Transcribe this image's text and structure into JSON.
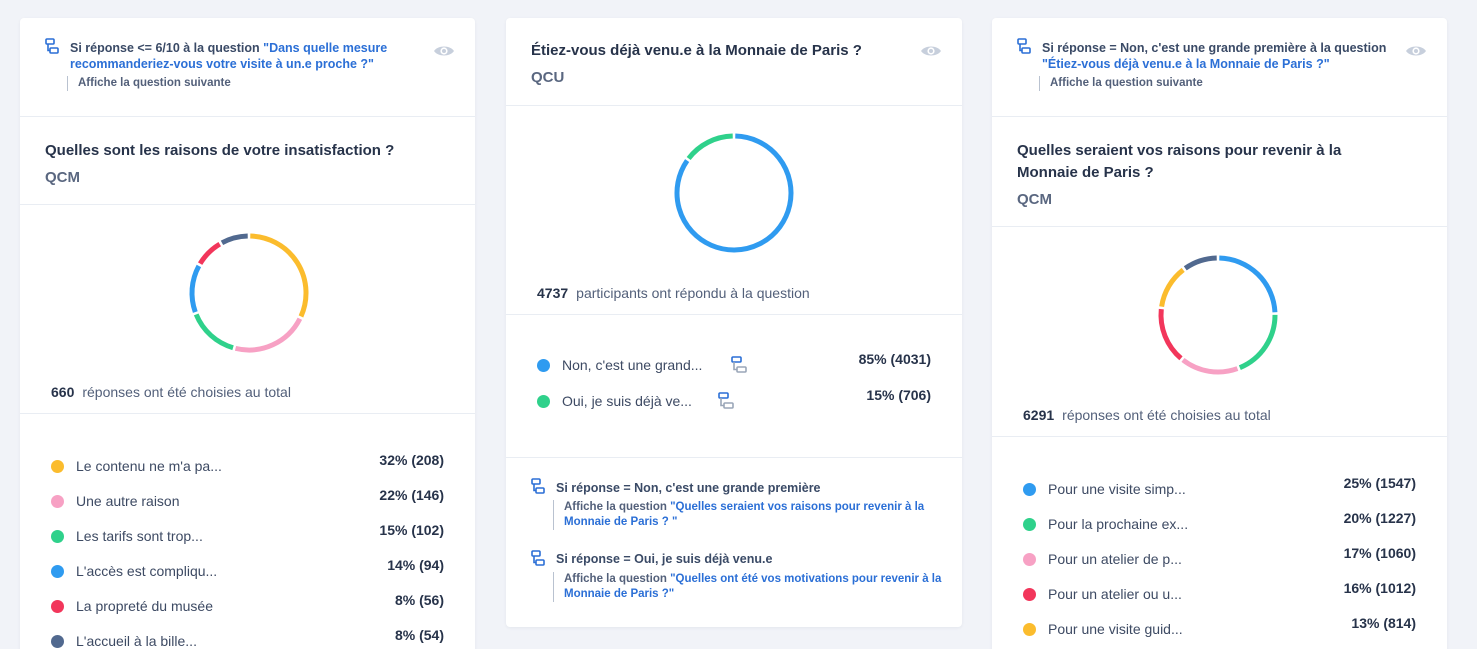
{
  "colors": {
    "yellow": "#fbbc2d",
    "pink": "#f7a1c4",
    "green": "#2fd18b",
    "blue": "#2f9bf0",
    "red": "#f2365b",
    "slate": "#51698f"
  },
  "card1": {
    "condition": {
      "prefix": "Si réponse <= 6/10 à la question ",
      "link": "\"Dans quelle mesure recommanderiez-vous votre visite à un.e proche ?\"",
      "action": "Affiche la question suivante"
    },
    "title": "Quelles sont les raisons de votre insatisfaction ?",
    "type": "QCM",
    "total_count": "660",
    "total_label": "réponses ont été choisies au total",
    "options": [
      {
        "label": "Le contenu ne m'a pa...",
        "pct": "32% (208)",
        "color": "yellow",
        "share": 0.32
      },
      {
        "label": "Une autre raison",
        "pct": "22% (146)",
        "color": "pink",
        "share": 0.22
      },
      {
        "label": "Les tarifs sont trop...",
        "pct": "15% (102)",
        "color": "green",
        "share": 0.15
      },
      {
        "label": "L'accès est compliqu...",
        "pct": "14% (94)",
        "color": "blue",
        "share": 0.14
      },
      {
        "label": "La propreté du musée",
        "pct": "8% (56)",
        "color": "red",
        "share": 0.085
      },
      {
        "label": "L'accueil à la bille...",
        "pct": "8% (54)",
        "color": "slate",
        "share": 0.082
      }
    ]
  },
  "card2": {
    "title": "Étiez-vous déjà venu.e à la Monnaie de Paris ?",
    "type": "QCU",
    "total_count": "4737",
    "total_label": "participants ont répondu à la question",
    "options": [
      {
        "label": "Non, c'est une grand...",
        "pct": "85% (4031)",
        "color": "blue",
        "share": 0.85
      },
      {
        "label": "Oui, je suis déjà ve...",
        "pct": "15% (706)",
        "color": "green",
        "share": 0.15
      }
    ],
    "rules": [
      {
        "cond": "Si réponse = Non, c'est une grande première",
        "action": "Affiche la question ",
        "link": "\"Quelles seraient vos raisons pour revenir à la Monnaie de Paris ? \""
      },
      {
        "cond": "Si réponse = Oui, je suis déjà venu.e",
        "action": "Affiche la question ",
        "link": "\"Quelles ont été vos motivations pour revenir à la Monnaie de Paris ?\""
      }
    ]
  },
  "card3": {
    "condition": {
      "prefix": "Si réponse = Non, c'est une grande première à la question ",
      "link": "\"Étiez-vous déjà venu.e à la Monnaie de Paris ?\"",
      "action": "Affiche la question suivante"
    },
    "title": "Quelles seraient vos raisons pour revenir à la Monnaie de Paris ?",
    "type": "QCM",
    "total_count": "6291",
    "total_label": "réponses ont été choisies au total",
    "options": [
      {
        "label": "Pour une visite simp...",
        "pct": "25% (1547)",
        "color": "blue",
        "share": 0.246
      },
      {
        "label": "Pour la prochaine ex...",
        "pct": "20% (1227)",
        "color": "green",
        "share": 0.195
      },
      {
        "label": "Pour un atelier de p...",
        "pct": "17% (1060)",
        "color": "pink",
        "share": 0.168
      },
      {
        "label": "Pour un atelier ou u...",
        "pct": "16% (1012)",
        "color": "red",
        "share": 0.161
      },
      {
        "label": "Pour une visite guid...",
        "pct": "13% (814)",
        "color": "yellow",
        "share": 0.129
      },
      {
        "label": "",
        "pct": "",
        "color": "slate",
        "share": 0.101
      }
    ]
  }
}
